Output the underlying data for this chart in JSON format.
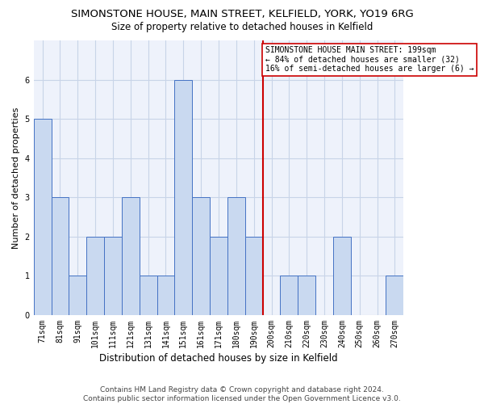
{
  "title": "SIMONSTONE HOUSE, MAIN STREET, KELFIELD, YORK, YO19 6RG",
  "subtitle": "Size of property relative to detached houses in Kelfield",
  "xlabel": "Distribution of detached houses by size in Kelfield",
  "ylabel": "Number of detached properties",
  "categories": [
    "71sqm",
    "81sqm",
    "91sqm",
    "101sqm",
    "111sqm",
    "121sqm",
    "131sqm",
    "141sqm",
    "151sqm",
    "161sqm",
    "171sqm",
    "180sqm",
    "190sqm",
    "200sqm",
    "210sqm",
    "220sqm",
    "230sqm",
    "240sqm",
    "250sqm",
    "260sqm",
    "270sqm"
  ],
  "values": [
    5,
    3,
    1,
    2,
    2,
    3,
    1,
    1,
    6,
    3,
    2,
    3,
    2,
    0,
    1,
    1,
    0,
    2,
    0,
    0,
    1
  ],
  "bar_color": "#c9d9f0",
  "bar_edge_color": "#4472c4",
  "vline_color": "#cc0000",
  "vline_index": 13,
  "annotation_text": "SIMONSTONE HOUSE MAIN STREET: 199sqm\n← 84% of detached houses are smaller (32)\n16% of semi-detached houses are larger (6) →",
  "annotation_box_color": "#ffffff",
  "annotation_box_edgecolor": "#cc0000",
  "ylim": [
    0,
    7
  ],
  "yticks": [
    0,
    1,
    2,
    3,
    4,
    5,
    6
  ],
  "grid_color": "#c8d4e8",
  "background_color": "#eef2fb",
  "title_fontsize": 9.5,
  "subtitle_fontsize": 8.5,
  "xlabel_fontsize": 8.5,
  "ylabel_fontsize": 8,
  "tick_fontsize": 7,
  "annot_fontsize": 7,
  "footer_text": "Contains HM Land Registry data © Crown copyright and database right 2024.\nContains public sector information licensed under the Open Government Licence v3.0.",
  "footer_fontsize": 6.5
}
